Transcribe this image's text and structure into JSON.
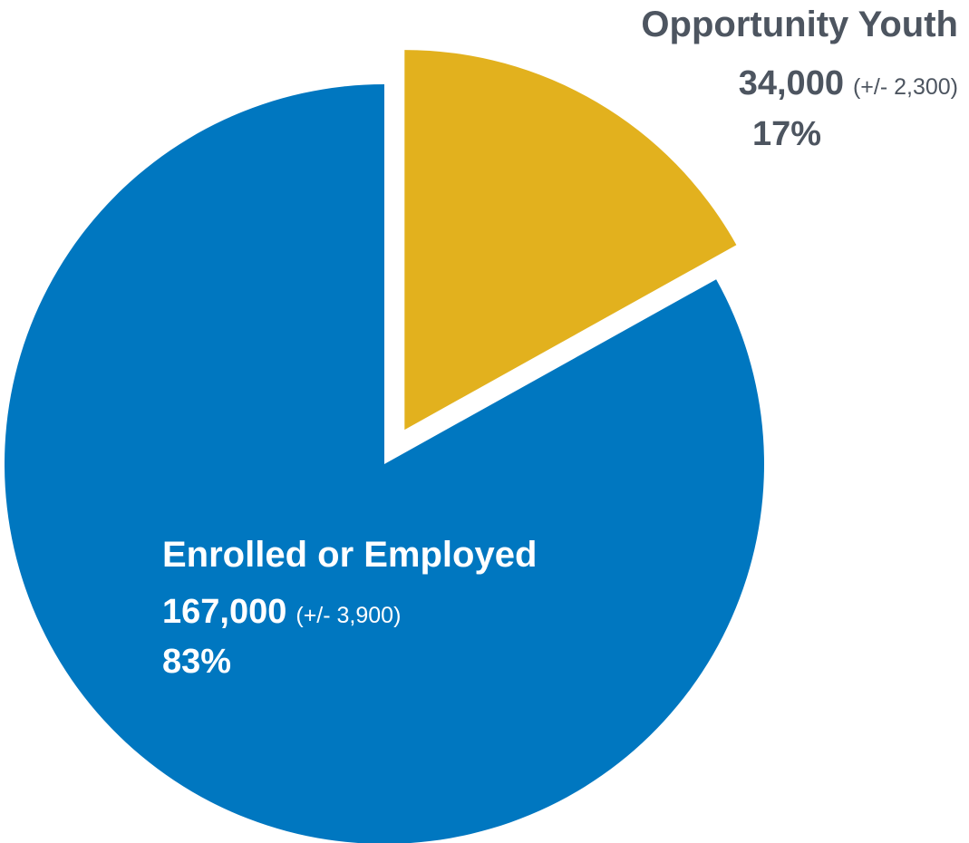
{
  "chart_data": {
    "type": "pie",
    "title": "",
    "slices": [
      {
        "name": "Enrolled or Employed",
        "value": 167000,
        "value_label": "167,000",
        "margin_of_error": "(+/- 3,900)",
        "percent": 83,
        "percent_label": "83%",
        "color": "#0077c0",
        "label_color": "#ffffff",
        "exploded": false
      },
      {
        "name": "Opportunity Youth",
        "value": 34000,
        "value_label": "34,000",
        "margin_of_error": "(+/- 2,300)",
        "percent": 17,
        "percent_label": "17%",
        "color": "#e2b11e",
        "label_color": "#4d5560",
        "exploded": true
      }
    ],
    "start_angle_deg": 0,
    "direction": "clockwise",
    "legend": "none"
  }
}
